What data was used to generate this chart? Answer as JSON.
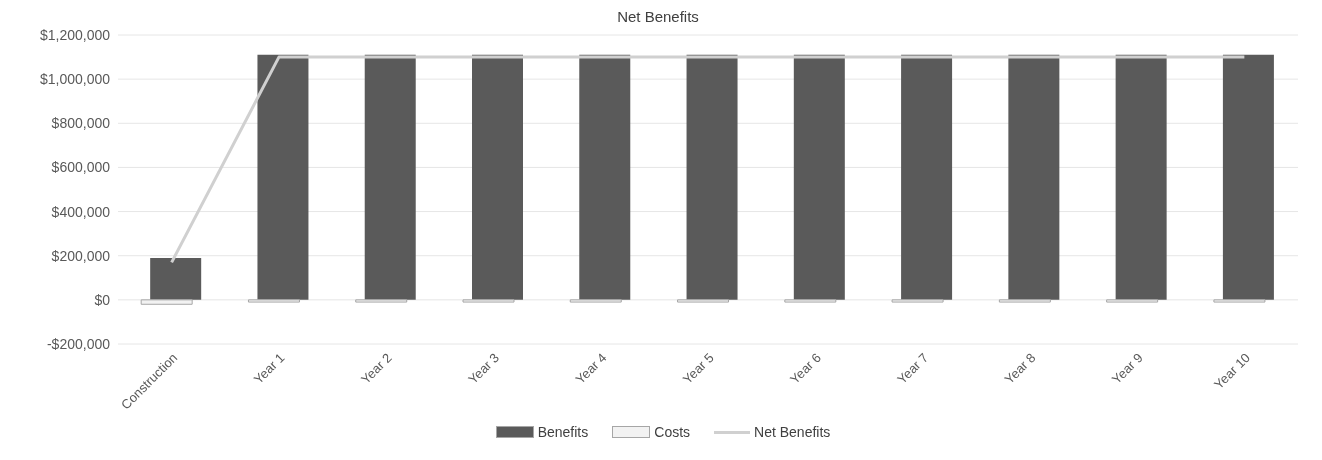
{
  "chart_data": {
    "type": "bar",
    "title": "Net Benefits",
    "categories": [
      "Construction",
      "Year 1",
      "Year 2",
      "Year 3",
      "Year 4",
      "Year 5",
      "Year 6",
      "Year 7",
      "Year 8",
      "Year 9",
      "Year 10"
    ],
    "series": [
      {
        "name": "Benefits",
        "color": "#5a5a5a",
        "values": [
          190000,
          1110000,
          1110000,
          1110000,
          1110000,
          1110000,
          1110000,
          1110000,
          1110000,
          1110000,
          1110000
        ]
      },
      {
        "name": "Costs",
        "color": "#f2f2f2",
        "values": [
          -20000,
          -10000,
          -10000,
          -10000,
          -10000,
          -10000,
          -10000,
          -10000,
          -10000,
          -10000,
          -10000
        ]
      },
      {
        "name": "Net Benefits",
        "type": "line",
        "color": "#d0d0d0",
        "values": [
          170000,
          1100000,
          1100000,
          1100000,
          1100000,
          1100000,
          1100000,
          1100000,
          1100000,
          1100000,
          1100000
        ]
      }
    ],
    "ylim": [
      -200000,
      1200000
    ],
    "yticks": [
      {
        "value": -200000,
        "label": "-$200,000"
      },
      {
        "value": 0,
        "label": "$0"
      },
      {
        "value": 200000,
        "label": "$200,000"
      },
      {
        "value": 400000,
        "label": "$400,000"
      },
      {
        "value": 600000,
        "label": "$600,000"
      },
      {
        "value": 800000,
        "label": "$800,000"
      },
      {
        "value": 1000000,
        "label": "$1,000,000"
      },
      {
        "value": 1200000,
        "label": "$1,200,000"
      }
    ],
    "grid": "y",
    "legend": "bottom",
    "marker": "none"
  }
}
